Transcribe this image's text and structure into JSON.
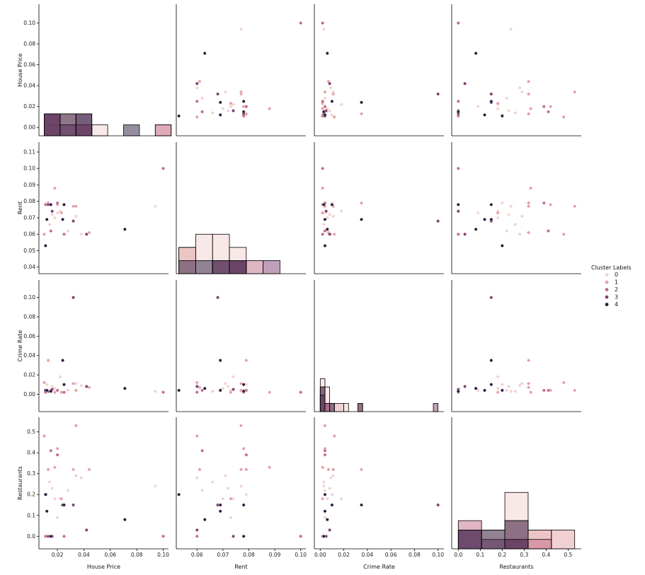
{
  "chart_data": {
    "type": "pairplot",
    "variables": [
      "House Price",
      "Rent",
      "Crime Rate",
      "Restaurants"
    ],
    "legend": {
      "title": "Cluster Labels",
      "labels": [
        "0",
        "1",
        "2",
        "3",
        "4"
      ],
      "placement": "right-center"
    },
    "colors": [
      "#f2d2cf",
      "#e3a1a6",
      "#c26b8a",
      "#7f3f73",
      "#2b1b3f"
    ],
    "axis_ticks": {
      "House Price": [
        "0.00",
        "0.02",
        "0.04",
        "0.06",
        "0.08",
        "0.10"
      ],
      "Rent": [
        "0.04",
        "0.05",
        "0.06",
        "0.07",
        "0.08",
        "0.09",
        "0.10",
        "0.11"
      ],
      "Crime Rate": [
        "0.00",
        "0.02",
        "0.04",
        "0.06",
        "0.08",
        "0.10"
      ],
      "Restaurants": [
        "0.0",
        "0.1",
        "0.2",
        "0.3",
        "0.4",
        "0.5"
      ]
    },
    "axis_ticks_x": {
      "House Price": [
        "0.02",
        "0.04",
        "0.06",
        "0.08",
        "0.10"
      ],
      "Rent": [
        "0.06",
        "0.07",
        "0.08",
        "0.09",
        "0.10"
      ],
      "Crime Rate": [
        "0.00",
        "0.02",
        "0.04",
        "0.06",
        "0.08",
        "0.10"
      ],
      "Restaurants": [
        "0.0",
        "0.1",
        "0.2",
        "0.3",
        "0.4",
        "0.5"
      ]
    },
    "points": [
      {
        "cluster": 0,
        "house": 0.014,
        "rent": 0.066,
        "crime": 0.003,
        "rest": 0.26
      },
      {
        "cluster": 0,
        "house": 0.016,
        "rent": 0.072,
        "crime": 0.008,
        "rest": 0.23
      },
      {
        "cluster": 0,
        "house": 0.018,
        "rent": 0.07,
        "crime": 0.006,
        "rest": 0.18
      },
      {
        "cluster": 0,
        "house": 0.02,
        "rent": 0.073,
        "crime": 0.004,
        "rest": 0.09
      },
      {
        "cluster": 0,
        "house": 0.022,
        "rent": 0.074,
        "crime": 0.018,
        "rest": 0.18
      },
      {
        "cluster": 0,
        "house": 0.028,
        "rent": 0.062,
        "crime": 0.004,
        "rest": 0.22
      },
      {
        "cluster": 0,
        "house": 0.034,
        "rent": 0.071,
        "crime": 0.011,
        "rest": 0.29
      },
      {
        "cluster": 0,
        "house": 0.038,
        "rent": 0.06,
        "crime": 0.009,
        "rest": 0.28
      },
      {
        "cluster": 0,
        "house": 0.094,
        "rent": 0.077,
        "crime": 0.003,
        "rest": 0.24
      },
      {
        "cluster": 0,
        "house": 0.012,
        "rent": 0.079,
        "crime": 0.01,
        "rest": 0.2
      },
      {
        "cluster": 1,
        "house": 0.01,
        "rent": 0.06,
        "crime": 0.012,
        "rest": 0.48
      },
      {
        "cluster": 1,
        "house": 0.013,
        "rent": 0.079,
        "crime": 0.035,
        "rest": 0.32
      },
      {
        "cluster": 1,
        "house": 0.018,
        "rent": 0.088,
        "crime": 0.002,
        "rest": 0.33
      },
      {
        "cluster": 1,
        "house": 0.02,
        "rent": 0.078,
        "crime": 0.004,
        "rest": 0.42
      },
      {
        "cluster": 1,
        "house": 0.023,
        "rent": 0.073,
        "crime": 0.002,
        "rest": 0.18
      },
      {
        "cluster": 1,
        "house": 0.032,
        "rent": 0.077,
        "crime": 0.011,
        "rest": 0.32
      },
      {
        "cluster": 1,
        "house": 0.034,
        "rent": 0.077,
        "crime": 0.004,
        "rest": 0.53
      },
      {
        "cluster": 1,
        "house": 0.044,
        "rent": 0.061,
        "crime": 0.007,
        "rest": 0.32
      },
      {
        "cluster": 2,
        "house": 0.011,
        "rent": 0.078,
        "crime": 0.002,
        "rest": 0.0
      },
      {
        "cluster": 2,
        "house": 0.015,
        "rent": 0.062,
        "crime": 0.004,
        "rest": 0.41
      },
      {
        "cluster": 2,
        "house": 0.02,
        "rent": 0.079,
        "crime": 0.004,
        "rest": 0.39
      },
      {
        "cluster": 2,
        "house": 0.025,
        "rent": 0.06,
        "crime": 0.002,
        "rest": 0.0
      },
      {
        "cluster": 2,
        "house": 0.1,
        "rent": 0.1,
        "crime": 0.002,
        "rest": 0.0
      },
      {
        "cluster": 3,
        "house": 0.013,
        "rent": 0.078,
        "crime": 0.003,
        "rest": 0.0
      },
      {
        "cluster": 3,
        "house": 0.016,
        "rent": 0.074,
        "crime": 0.005,
        "rest": 0.0
      },
      {
        "cluster": 3,
        "house": 0.032,
        "rent": 0.068,
        "crime": 0.1,
        "rest": 0.15
      },
      {
        "cluster": 3,
        "house": 0.042,
        "rent": 0.06,
        "crime": 0.008,
        "rest": 0.03
      },
      {
        "cluster": 4,
        "house": 0.011,
        "rent": 0.053,
        "crime": 0.004,
        "rest": 0.2
      },
      {
        "cluster": 4,
        "house": 0.012,
        "rent": 0.069,
        "crime": 0.004,
        "rest": 0.12
      },
      {
        "cluster": 4,
        "house": 0.015,
        "rent": 0.078,
        "crime": 0.003,
        "rest": 0.0
      },
      {
        "cluster": 4,
        "house": 0.024,
        "rent": 0.069,
        "crime": 0.035,
        "rest": 0.15
      },
      {
        "cluster": 4,
        "house": 0.071,
        "rent": 0.063,
        "crime": 0.006,
        "rest": 0.08
      },
      {
        "cluster": 4,
        "house": 0.025,
        "rent": 0.078,
        "crime": 0.01,
        "rest": 0.15
      }
    ],
    "histograms": {
      "House Price": {
        "bins": [
          0.01,
          0.022,
          0.034,
          0.046,
          0.058,
          0.07,
          0.082,
          0.094,
          0.106
        ],
        "stacks": [
          {
            "cluster": 0,
            "counts": [
              1,
              1,
              0,
              1,
              0,
              0,
              0,
              1
            ]
          },
          {
            "cluster": 1,
            "counts": [
              2,
              2,
              1,
              0,
              0,
              0,
              0,
              0
            ]
          },
          {
            "cluster": 2,
            "counts": [
              2,
              0,
              1,
              0,
              0,
              0,
              0,
              1
            ]
          },
          {
            "cluster": 3,
            "counts": [
              2,
              1,
              2,
              0,
              0,
              0,
              0,
              0
            ]
          },
          {
            "cluster": 4,
            "counts": [
              2,
              2,
              2,
              0,
              0,
              1,
              0,
              0
            ]
          }
        ],
        "ylim": [
          0,
          12
        ]
      },
      "Rent": {
        "bins": [
          0.053,
          0.0595,
          0.066,
          0.0725,
          0.079,
          0.0855,
          0.092
        ],
        "stacks": [
          {
            "cluster": 0,
            "counts": [
              2,
              3,
              3,
              2,
              0,
              0
            ]
          },
          {
            "cluster": 1,
            "counts": [
              2,
              0,
              1,
              1,
              0,
              0
            ]
          },
          {
            "cluster": 2,
            "counts": [
              0,
              0,
              0,
              1,
              1,
              0
            ]
          },
          {
            "cluster": 3,
            "counts": [
              0,
              0,
              1,
              1,
              0,
              1
            ]
          },
          {
            "cluster": 4,
            "counts": [
              1,
              1,
              1,
              1,
              0,
              0
            ]
          }
        ],
        "ylim": [
          0,
          10
        ]
      },
      "Crime Rate": {
        "bins": [
          0.0,
          0.004,
          0.008,
          0.012,
          0.02,
          0.024,
          0.032,
          0.036,
          0.096,
          0.1
        ],
        "stacks": [
          {
            "cluster": 0,
            "counts": [
              4,
              3,
              1,
              0,
              1,
              0,
              0,
              0,
              0
            ]
          },
          {
            "cluster": 1,
            "counts": [
              2,
              1,
              1,
              1,
              0,
              0,
              1,
              0,
              0
            ]
          },
          {
            "cluster": 2,
            "counts": [
              3,
              1,
              0,
              0,
              0,
              0,
              0,
              0,
              0
            ]
          },
          {
            "cluster": 3,
            "counts": [
              2,
              1,
              0,
              0,
              0,
              0,
              0,
              0,
              1
            ]
          },
          {
            "cluster": 4,
            "counts": [
              3,
              0,
              1,
              0,
              0,
              0,
              1,
              0,
              0
            ]
          }
        ],
        "ylim": [
          0,
          16
        ]
      },
      "Restaurants": {
        "bins": [
          0.0,
          0.106,
          0.212,
          0.318,
          0.424,
          0.53
        ],
        "stacks": [
          {
            "cluster": 0,
            "counts": [
              0,
              2,
              6,
              2,
              0
            ]
          },
          {
            "cluster": 1,
            "counts": [
              0,
              0,
              3,
              2,
              2
            ]
          },
          {
            "cluster": 2,
            "counts": [
              3,
              0,
              1,
              1,
              0
            ]
          },
          {
            "cluster": 3,
            "counts": [
              2,
              1,
              1,
              0,
              0
            ]
          },
          {
            "cluster": 4,
            "counts": [
              2,
              2,
              3,
              0,
              0
            ]
          }
        ],
        "ylim": [
          0,
          14
        ]
      }
    }
  }
}
